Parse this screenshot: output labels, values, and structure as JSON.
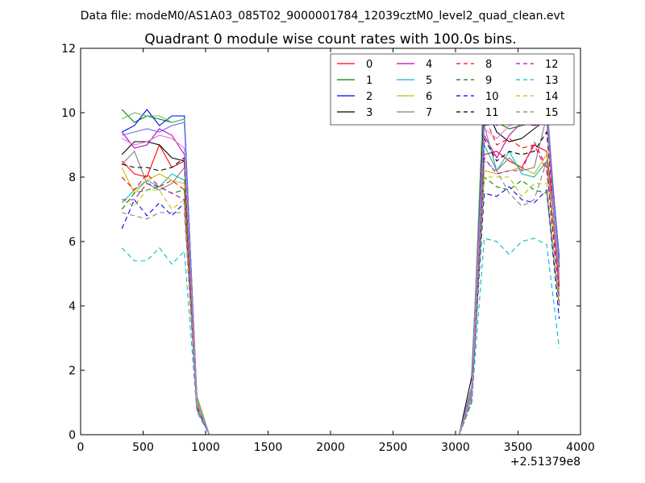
{
  "chart_data": {
    "type": "line",
    "suptitle": "Data file: modeM0/AS1A03_085T02_9000001784_12039cztM0_level2_quad_clean.evt",
    "title": "Quadrant 0 module wise count rates with 100.0s bins.",
    "xlabel": "",
    "ylabel": "",
    "x_offset_label": "+2.51379e8",
    "xlim": [
      0,
      4000
    ],
    "ylim": [
      0,
      12
    ],
    "xticks": [
      "0",
      "500",
      "1000",
      "1500",
      "2000",
      "2500",
      "3000",
      "3500",
      "4000"
    ],
    "yticks": [
      "0",
      "2",
      "4",
      "6",
      "8",
      "10",
      "12"
    ],
    "grid": false,
    "legend_position": "top-right",
    "legend_columns": 4,
    "x": [
      330,
      430,
      530,
      630,
      730,
      830,
      930,
      1030,
      1130,
      1230,
      1330,
      1430,
      1530,
      1630,
      1730,
      1830,
      1930,
      2030,
      2130,
      2230,
      2330,
      2430,
      2530,
      2630,
      2730,
      2830,
      2930,
      3030,
      3130,
      3230,
      3330,
      3430,
      3530,
      3630,
      3730,
      3830
    ],
    "series": [
      {
        "name": "0",
        "color": "#ff0000",
        "dash": "solid",
        "values": [
          8.5,
          8.1,
          8.0,
          9.0,
          8.3,
          8.5,
          1.0,
          0,
          0,
          0,
          0,
          0,
          0,
          0,
          0,
          0,
          0,
          0,
          0,
          0,
          0,
          0,
          0,
          0,
          0,
          0,
          0,
          0,
          1.5,
          8.7,
          8.8,
          8.5,
          8.3,
          9.0,
          8.8,
          5.4
        ]
      },
      {
        "name": "1",
        "color": "#008000",
        "dash": "solid",
        "values": [
          10.1,
          9.7,
          9.9,
          9.8,
          9.7,
          9.8,
          1.2,
          0,
          0,
          0,
          0,
          0,
          0,
          0,
          0,
          0,
          0,
          0,
          0,
          0,
          0,
          0,
          0,
          0,
          0,
          0,
          0,
          0,
          1.3,
          10.4,
          9.7,
          9.5,
          9.6,
          9.7,
          9.8,
          5.5
        ]
      },
      {
        "name": "2",
        "color": "#0000ff",
        "dash": "solid",
        "values": [
          9.4,
          9.6,
          10.1,
          9.6,
          9.9,
          9.9,
          1.1,
          0,
          0,
          0,
          0,
          0,
          0,
          0,
          0,
          0,
          0,
          0,
          0,
          0,
          0,
          0,
          0,
          0,
          0,
          0,
          0,
          0,
          1.4,
          9.6,
          9.7,
          9.8,
          10.3,
          9.7,
          10.0,
          5.5
        ]
      },
      {
        "name": "3",
        "color": "#000000",
        "dash": "solid",
        "values": [
          8.7,
          9.1,
          9.1,
          9.0,
          8.6,
          8.5,
          1.0,
          0,
          0,
          0,
          0,
          0,
          0,
          0,
          0,
          0,
          0,
          0,
          0,
          0,
          0,
          0,
          0,
          0,
          0,
          0,
          0,
          0,
          1.8,
          10.3,
          9.4,
          9.1,
          9.2,
          9.5,
          9.8,
          5.2
        ]
      },
      {
        "name": "4",
        "color": "#bf00bf",
        "dash": "solid",
        "values": [
          9.4,
          8.9,
          9.0,
          9.5,
          9.3,
          8.7,
          1.0,
          0,
          0,
          0,
          0,
          0,
          0,
          0,
          0,
          0,
          0,
          0,
          0,
          0,
          0,
          0,
          0,
          0,
          0,
          0,
          0,
          0,
          1.5,
          9.3,
          8.6,
          9.3,
          9.7,
          9.6,
          9.7,
          4.7
        ]
      },
      {
        "name": "5",
        "color": "#00bfbf",
        "dash": "solid",
        "values": [
          7.2,
          7.6,
          7.9,
          7.7,
          8.1,
          7.9,
          0.9,
          0,
          0,
          0,
          0,
          0,
          0,
          0,
          0,
          0,
          0,
          0,
          0,
          0,
          0,
          0,
          0,
          0,
          0,
          0,
          0,
          0,
          1.4,
          9.0,
          8.2,
          8.8,
          8.1,
          8.0,
          8.5,
          4.6
        ]
      },
      {
        "name": "6",
        "color": "#bfbf00",
        "dash": "solid",
        "values": [
          8.3,
          7.5,
          7.9,
          8.1,
          7.9,
          7.8,
          1.1,
          0,
          0,
          0,
          0,
          0,
          0,
          0,
          0,
          0,
          0,
          0,
          0,
          0,
          0,
          0,
          0,
          0,
          0,
          0,
          0,
          0,
          1.3,
          8.2,
          8.1,
          8.2,
          8.3,
          8.1,
          8.7,
          4.5
        ]
      },
      {
        "name": "7",
        "color": "#808080",
        "dash": "solid",
        "values": [
          8.4,
          8.8,
          7.8,
          7.6,
          7.8,
          8.3,
          0.9,
          0,
          0,
          0,
          0,
          0,
          0,
          0,
          0,
          0,
          0,
          0,
          0,
          0,
          0,
          0,
          0,
          0,
          0,
          0,
          0,
          0,
          1.2,
          9.6,
          8.2,
          8.6,
          8.2,
          8.3,
          9.9,
          4.3
        ]
      },
      {
        "name": "8",
        "color": "#ff0000",
        "dash": "dashed",
        "values": [
          8.0,
          7.6,
          8.1,
          7.7,
          7.9,
          7.6,
          0.9,
          0,
          0,
          0,
          0,
          0,
          0,
          0,
          0,
          0,
          0,
          0,
          0,
          0,
          0,
          0,
          0,
          0,
          0,
          0,
          0,
          0,
          1.4,
          9.9,
          9.0,
          9.2,
          8.9,
          9.0,
          8.2,
          4.6
        ]
      },
      {
        "name": "9",
        "color": "#008000",
        "dash": "dashed",
        "values": [
          7.0,
          7.5,
          7.6,
          7.7,
          7.5,
          7.6,
          0.8,
          0,
          0,
          0,
          0,
          0,
          0,
          0,
          0,
          0,
          0,
          0,
          0,
          0,
          0,
          0,
          0,
          0,
          0,
          0,
          0,
          0,
          1.0,
          8.0,
          7.7,
          7.6,
          7.9,
          7.6,
          7.5,
          4.0
        ]
      },
      {
        "name": "10",
        "color": "#0000ff",
        "dash": "dashed",
        "values": [
          6.4,
          7.3,
          6.8,
          7.2,
          6.8,
          7.2,
          0.8,
          0,
          0,
          0,
          0,
          0,
          0,
          0,
          0,
          0,
          0,
          0,
          0,
          0,
          0,
          0,
          0,
          0,
          0,
          0,
          0,
          0,
          1.2,
          7.5,
          7.4,
          7.7,
          7.3,
          7.2,
          7.6,
          3.6
        ]
      },
      {
        "name": "11",
        "color": "#000000",
        "dash": "dashed",
        "values": [
          8.4,
          8.3,
          8.3,
          8.2,
          8.3,
          8.6,
          1.0,
          0,
          0,
          0,
          0,
          0,
          0,
          0,
          0,
          0,
          0,
          0,
          0,
          0,
          0,
          0,
          0,
          0,
          0,
          0,
          0,
          0,
          1.5,
          9.2,
          8.5,
          8.8,
          8.7,
          8.8,
          9.4,
          5.2
        ]
      },
      {
        "name": "12",
        "color": "#bf00bf",
        "dash": "dashed",
        "values": [
          7.3,
          7.3,
          7.8,
          7.7,
          7.5,
          7.3,
          0.9,
          0,
          0,
          0,
          0,
          0,
          0,
          0,
          0,
          0,
          0,
          0,
          0,
          0,
          0,
          0,
          0,
          0,
          0,
          0,
          0,
          0,
          1.3,
          8.6,
          8.1,
          8.2,
          8.2,
          9.1,
          8.3,
          4.1
        ]
      },
      {
        "name": "13",
        "color": "#00bfbf",
        "dash": "dashed",
        "values": [
          5.8,
          5.4,
          5.4,
          5.8,
          5.3,
          5.7,
          0.7,
          0,
          0,
          0,
          0,
          0,
          0,
          0,
          0,
          0,
          0,
          0,
          0,
          0,
          0,
          0,
          0,
          0,
          0,
          0,
          0,
          0,
          1.0,
          6.1,
          6.0,
          5.6,
          6.0,
          6.1,
          5.9,
          2.7
        ]
      },
      {
        "name": "14",
        "color": "#bfbf00",
        "dash": "dashed",
        "values": [
          7.3,
          7.1,
          7.6,
          7.6,
          7.0,
          7.3,
          0.9,
          0,
          0,
          0,
          0,
          0,
          0,
          0,
          0,
          0,
          0,
          0,
          0,
          0,
          0,
          0,
          0,
          0,
          0,
          0,
          0,
          0,
          1.2,
          8.0,
          8.0,
          8.0,
          7.4,
          7.8,
          7.8,
          4.1
        ]
      },
      {
        "name": "15",
        "color": "#808080",
        "dash": "dashed",
        "values": [
          6.9,
          6.8,
          6.7,
          6.9,
          6.9,
          6.9,
          0.8,
          0,
          0,
          0,
          0,
          0,
          0,
          0,
          0,
          0,
          0,
          0,
          0,
          0,
          0,
          0,
          0,
          0,
          0,
          0,
          0,
          0,
          1.1,
          8.5,
          8.2,
          7.5,
          7.1,
          7.3,
          8.5,
          5.0
        ]
      },
      {
        "name": "",
        "color": "#66bb66",
        "dash": "solid",
        "values": [
          9.8,
          10.0,
          9.9,
          9.9,
          9.7,
          9.8,
          1.2,
          0,
          0,
          0,
          0,
          0,
          0,
          0,
          0,
          0,
          0,
          0,
          0,
          0,
          0,
          0,
          0,
          0,
          0,
          0,
          0,
          0,
          1.5,
          11.3,
          10.4,
          10.6,
          11.2,
          10.6,
          10.5,
          5.0
        ]
      },
      {
        "name": "",
        "color": "#6666ff",
        "dash": "solid",
        "values": [
          9.3,
          9.4,
          9.5,
          9.4,
          9.6,
          9.7,
          1.0,
          0,
          0,
          0,
          0,
          0,
          0,
          0,
          0,
          0,
          0,
          0,
          0,
          0,
          0,
          0,
          0,
          0,
          0,
          0,
          0,
          0,
          1.4,
          10.0,
          9.6,
          9.9,
          10.0,
          9.8,
          10.1,
          5.4
        ]
      },
      {
        "name": "",
        "color": "#dd77dd",
        "dash": "solid",
        "values": [
          9.2,
          9.0,
          9.1,
          9.3,
          9.2,
          8.9,
          1.0,
          0,
          0,
          0,
          0,
          0,
          0,
          0,
          0,
          0,
          0,
          0,
          0,
          0,
          0,
          0,
          0,
          0,
          0,
          0,
          0,
          0,
          1.3,
          9.5,
          9.2,
          9.6,
          9.7,
          9.7,
          9.8,
          4.9
        ]
      }
    ]
  }
}
